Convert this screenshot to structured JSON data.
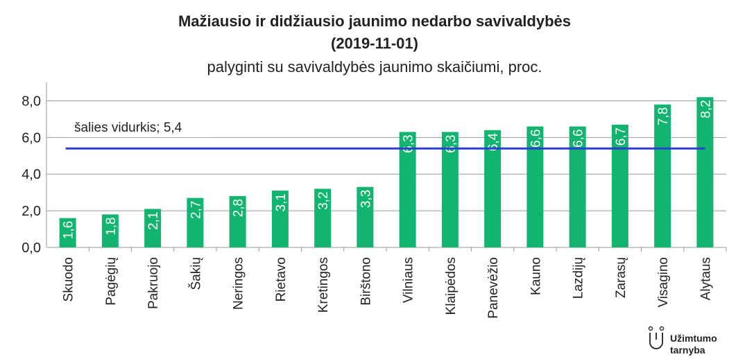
{
  "chart_data": {
    "type": "bar",
    "title": "Mažiausio ir didžiausio jaunimo nedarbo savivaldybės",
    "title_date": "(2019-11-01)",
    "subtitle": "palyginti su savivaldybės jaunimo skaičiumi, proc.",
    "categories": [
      "Skuodo",
      "Pagėgių",
      "Pakruojo",
      "Šakių",
      "Neringos",
      "Rietavo",
      "Kretingos",
      "Birštono",
      "Vilniaus",
      "Klaipėdos",
      "Panevėžio",
      "Kauno",
      "Lazdijų",
      "Zarasų",
      "Visagino",
      "Alytaus"
    ],
    "values": [
      1.6,
      1.8,
      2.1,
      2.7,
      2.8,
      3.1,
      3.2,
      3.3,
      6.3,
      6.3,
      6.4,
      6.6,
      6.6,
      6.7,
      7.8,
      8.2
    ],
    "value_labels": [
      "1,6",
      "1,8",
      "2,1",
      "2,7",
      "2,8",
      "3,1",
      "3,2",
      "3,3",
      "6,3",
      "6,3",
      "6,4",
      "6,6",
      "6,6",
      "6,7",
      "7,8",
      "8,2"
    ],
    "color": "#13b46f",
    "ylim": [
      0,
      9
    ],
    "yticks": [
      {
        "value": 0,
        "label": "0,0"
      },
      {
        "value": 2,
        "label": "2,0"
      },
      {
        "value": 4,
        "label": "4,0"
      },
      {
        "value": 6,
        "label": "6,0"
      },
      {
        "value": 8,
        "label": "8,0"
      }
    ],
    "grid": true,
    "reference_line": {
      "value": 5.4,
      "label": "šalies vidurkis; 5,4",
      "color": "#2a3fcc"
    },
    "logo": [
      "Užimtumo",
      "tarnyba"
    ]
  }
}
